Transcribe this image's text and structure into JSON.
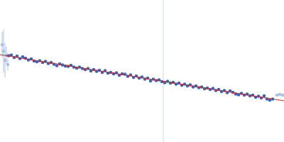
{
  "chart_data": {
    "type": "scatter",
    "xlim": [
      0,
      400
    ],
    "ylim": [
      0,
      200
    ],
    "xticks": [],
    "yticks": [],
    "tick_labels": false,
    "grid": false,
    "reference_lines": [
      {
        "x": 230,
        "color": "#cdd5e6"
      }
    ],
    "series": [
      {
        "type": "scatter",
        "color": "#a9bfe8",
        "marker": "circle",
        "x": [
          3,
          5,
          7,
          9,
          11,
          390,
          394,
          398
        ],
        "values": [
          137,
          128,
          115,
          122,
          109,
          66,
          67,
          66
        ],
        "error": [
          18,
          30,
          24,
          12,
          8,
          2,
          2,
          2
        ]
      },
      {
        "type": "scatter",
        "color": "#3a62b5",
        "marker": "circle",
        "x": [
          12,
          16,
          20,
          24,
          28,
          32,
          36,
          40,
          44,
          48,
          52,
          56,
          60,
          64,
          68,
          72,
          76,
          80,
          84,
          88,
          92,
          96,
          100,
          104,
          108,
          112,
          116,
          120,
          124,
          128,
          132,
          136,
          140,
          144,
          148,
          152,
          156,
          160,
          164,
          168,
          172,
          176,
          180,
          184,
          188,
          192,
          196,
          200,
          204,
          208,
          212,
          216,
          220,
          224,
          228,
          232,
          236,
          240,
          244,
          248,
          252,
          256,
          260,
          264,
          268,
          272,
          276,
          280,
          284,
          288,
          292,
          296,
          300,
          304,
          308,
          312,
          316,
          320,
          324,
          328,
          332,
          336,
          340,
          344,
          348,
          352,
          356,
          360,
          364,
          368,
          372,
          376,
          380,
          384
        ],
        "values": [
          121.5,
          122.5,
          119,
          121,
          117.5,
          120,
          118,
          115.5,
          117,
          114,
          113,
          114.5,
          112,
          113.5,
          110.5,
          112,
          109.5,
          107.5,
          110,
          108.5,
          107,
          106.5,
          108,
          105.5,
          104,
          105.5,
          103.5,
          102,
          103.5,
          100,
          102,
          99.5,
          101,
          98,
          100.5,
          97,
          98,
          96,
          97.5,
          94,
          96,
          95.5,
          92.5,
          94.5,
          91,
          93,
          90,
          91.5,
          88.5,
          90,
          86,
          88.5,
          86.5,
          87.5,
          85,
          83.5,
          85.5,
          83,
          84,
          81.5,
          83,
          80,
          81.5,
          79,
          80.5,
          77.5,
          79,
          76.5,
          77.5,
          75,
          76,
          74,
          75.5,
          72.5,
          74,
          71,
          72.5,
          69.5,
          72,
          70,
          67.5,
          66.5,
          68.5,
          66,
          67.5,
          65,
          66,
          63,
          64.5,
          62,
          65,
          60.5,
          59,
          60.5
        ]
      },
      {
        "type": "line",
        "color": "#d62728",
        "line_style": "solid",
        "x": [
          0,
          400
        ],
        "values": [
          123,
          58
        ]
      }
    ]
  }
}
